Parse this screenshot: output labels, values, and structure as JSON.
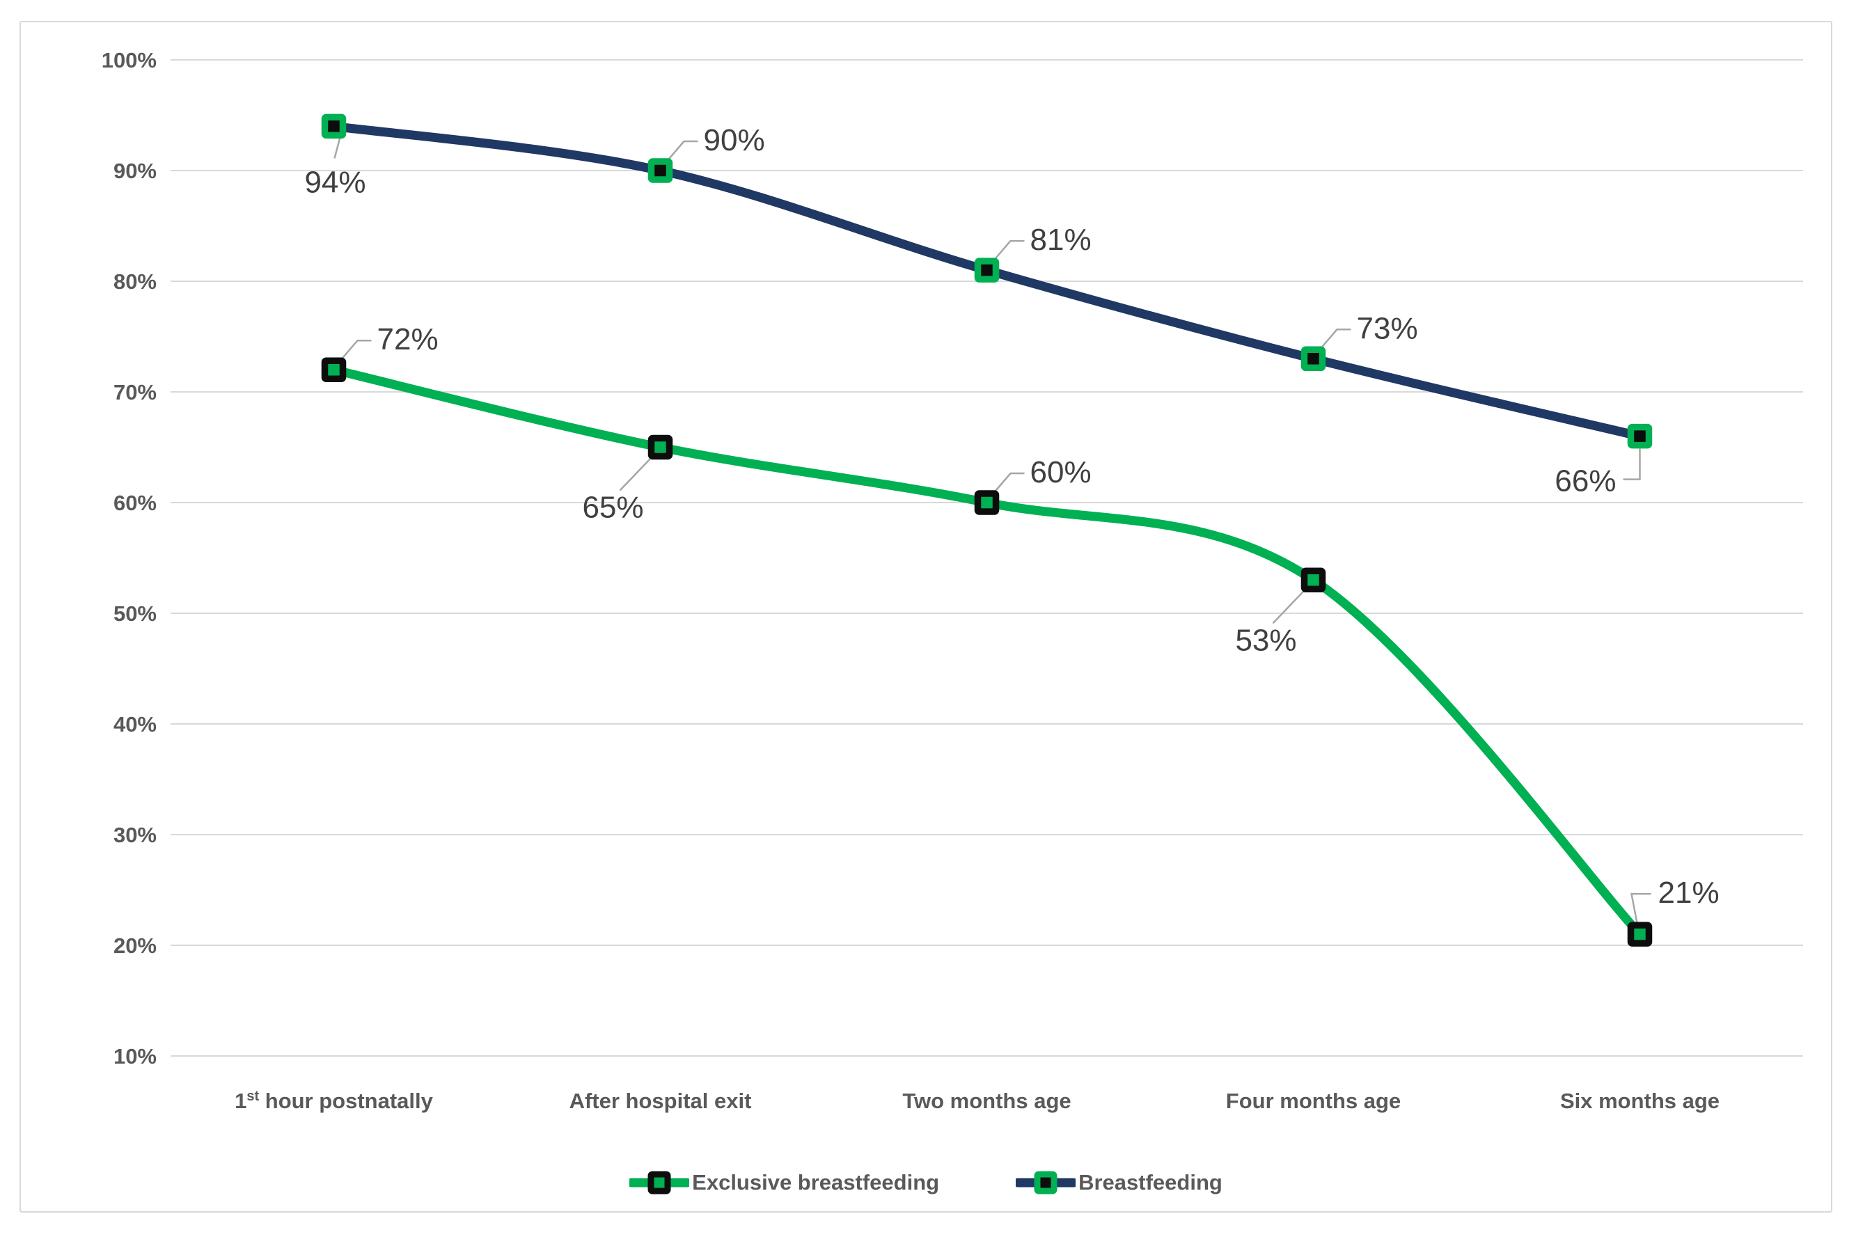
{
  "chart_data": {
    "type": "line",
    "title": "",
    "categories": [
      {
        "parts": [
          {
            "text": "1"
          },
          {
            "text": "st",
            "sup": true
          },
          {
            "text": " hour postnatally"
          }
        ]
      },
      {
        "parts": [
          {
            "text": "After hospital exit"
          }
        ]
      },
      {
        "parts": [
          {
            "text": "Two months age"
          }
        ]
      },
      {
        "parts": [
          {
            "text": "Four months age"
          }
        ]
      },
      {
        "parts": [
          {
            "text": "Six months age"
          }
        ]
      }
    ],
    "series": [
      {
        "name": "Exclusive breastfeeding",
        "values": [
          72,
          65,
          60,
          53,
          21
        ],
        "data_labels": [
          "72%",
          "65%",
          "60%",
          "53%",
          "21%"
        ],
        "label_placements": [
          "above-right",
          "below-left",
          "above-right",
          "below-left",
          "above-right-elbow"
        ],
        "line_color": "#00B052",
        "marker_fill": "#00B052",
        "marker_stroke": "#0D0D0D"
      },
      {
        "name": "Breastfeeding",
        "values": [
          94,
          90,
          81,
          73,
          66
        ],
        "data_labels": [
          "94%",
          "90%",
          "81%",
          "73%",
          "66%"
        ],
        "label_placements": [
          "below-center",
          "above-right",
          "above-right",
          "above-right",
          "below-left-elbow"
        ],
        "line_color": "#1F3864",
        "marker_fill": "#0D0D0D",
        "marker_stroke": "#00B052"
      }
    ],
    "y_axis": {
      "min": 10,
      "max": 100,
      "step": 10,
      "ticks": [
        {
          "value": 100,
          "label": "100%"
        },
        {
          "value": 90,
          "label": "90%"
        },
        {
          "value": 80,
          "label": "80%"
        },
        {
          "value": 70,
          "label": "70%"
        },
        {
          "value": 60,
          "label": "60%"
        },
        {
          "value": 50,
          "label": "50%"
        },
        {
          "value": 40,
          "label": "40%"
        },
        {
          "value": 30,
          "label": "30%"
        },
        {
          "value": 20,
          "label": "20%"
        },
        {
          "value": 10,
          "label": "10%"
        }
      ]
    },
    "grid": true,
    "legend_position": "bottom",
    "smooth_lines": true
  },
  "styles": {
    "grid_color": "#D9D9D9",
    "axis_text_color": "#595959",
    "data_label_color": "#404040",
    "leader_color": "#A6A6A6",
    "frame_border_color": "#D9D9D9",
    "background": "#FFFFFF"
  }
}
